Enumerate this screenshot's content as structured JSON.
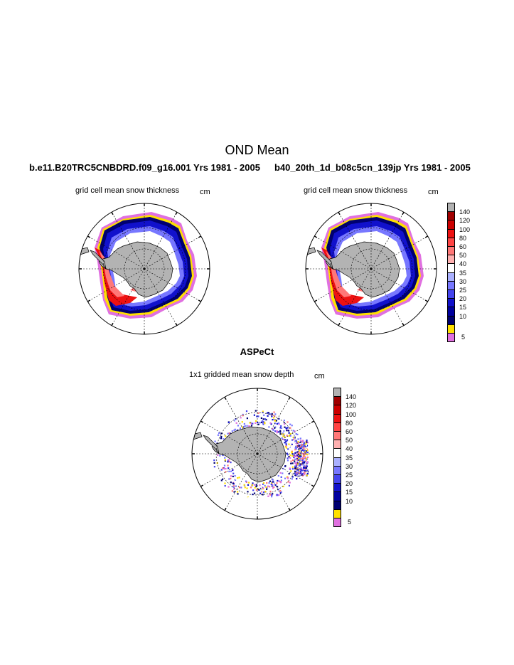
{
  "title": "OND Mean",
  "panels": {
    "left": {
      "case": "b.e11.B20TRC5CNBDRD.f09_g16.001  Yrs 1981 - 2005",
      "label": "grid cell mean snow thickness",
      "unit": "cm"
    },
    "right": {
      "case": "b40_20th_1d_b08c5cn_139jp  Yrs 1981 - 2005",
      "label": "grid cell mean snow thickness",
      "unit": "cm"
    },
    "bottom": {
      "case": "ASPeCt",
      "label": "1x1 gridded mean snow depth",
      "unit": "cm"
    }
  },
  "colorbar": {
    "levels": [
      "140",
      "120",
      "100",
      "80",
      "60",
      "50",
      "40",
      "35",
      "30",
      "25",
      "20",
      "15",
      "10",
      "5"
    ],
    "colors": [
      "#b2b2b2",
      "#a00000",
      "#cc0000",
      "#ee1111",
      "#ff4444",
      "#ff7777",
      "#ffb0b0",
      "#ffffff",
      "#aab0ff",
      "#7777ff",
      "#4444ee",
      "#1111cc",
      "#0000a0",
      "#000070",
      "#ffe000",
      "#e070e0"
    ]
  },
  "land_color": "#b3b3b3"
}
